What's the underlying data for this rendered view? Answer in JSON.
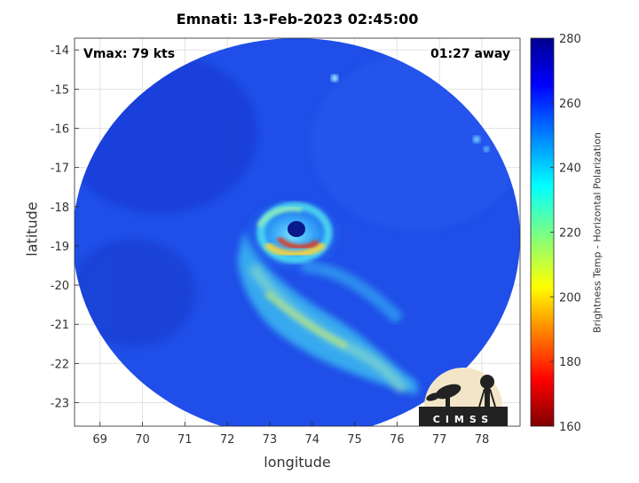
{
  "header": {
    "title": "Emnati: 13-Feb-2023 02:45:00",
    "vmax": "Vmax: 79 kts",
    "away": "01:27 away"
  },
  "axes": {
    "xlabel": "longitude",
    "ylabel": "latitude",
    "x_ticks": [
      "69",
      "70",
      "71",
      "72",
      "73",
      "74",
      "75",
      "76",
      "77",
      "78"
    ],
    "y_ticks": [
      "-14",
      "-15",
      "-16",
      "-17",
      "-18",
      "-19",
      "-20",
      "-21",
      "-22",
      "-23"
    ],
    "xlim": [
      68.4,
      78.9
    ],
    "ylim": [
      -23.6,
      -13.7
    ]
  },
  "colorbar": {
    "label": "Brightness Temp - Horizontal Polarization",
    "ticks": [
      "280",
      "260",
      "240",
      "220",
      "200",
      "180",
      "160"
    ],
    "range": [
      160,
      280
    ],
    "colormap": "jet"
  },
  "storm": {
    "eye_lon": 73.7,
    "eye_lat": -18.8
  },
  "logo": {
    "text": "CIMSS"
  },
  "colors": {
    "background_scan": "#1f4ee8",
    "eyewall_hot": "#e8330f"
  }
}
